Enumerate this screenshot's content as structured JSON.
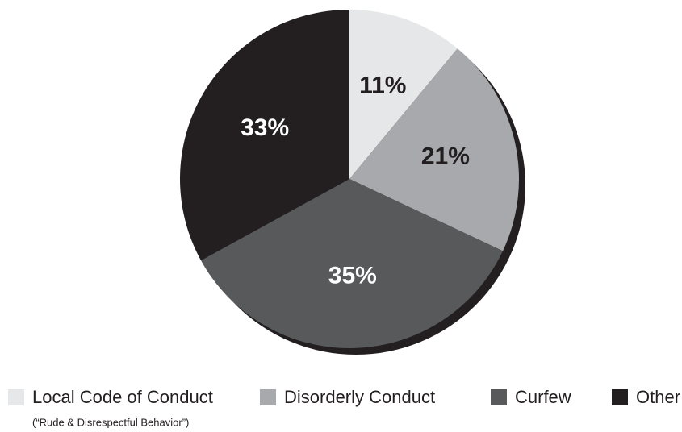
{
  "chart_data": {
    "type": "pie",
    "categories": [
      "Local Code of Conduct",
      "Disorderly Conduct",
      "Curfew",
      "Other"
    ],
    "values": [
      11,
      21,
      35,
      33
    ],
    "value_labels": [
      "11%",
      "21%",
      "35%",
      "33%"
    ],
    "colors": [
      "#e6e7e8",
      "#a7a9ac",
      "#58595b",
      "#231f20"
    ],
    "label_colors": [
      "#231f20",
      "#231f20",
      "#ffffff",
      "#ffffff"
    ],
    "legend_note": "(“Rude & Disrespectful Behavior”)",
    "legend": "bottom"
  }
}
